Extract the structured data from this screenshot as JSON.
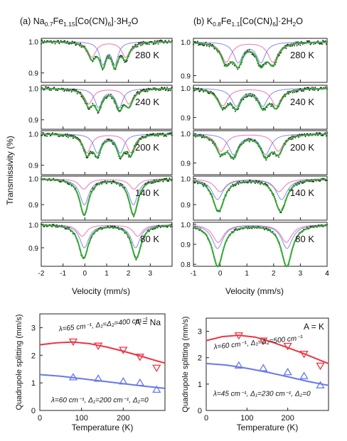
{
  "colors": {
    "fit": "#33aa33",
    "pink": "#ee77aa",
    "blue": "#8888ee",
    "data": "#111111",
    "top_red": "#ee3344",
    "bot_blue": "#6677ee"
  },
  "chart_data": [
    {
      "type": "line",
      "panel": "a",
      "title_prefix": "(a) ",
      "title_pre": "Na",
      "title_sub1": "0.7",
      "title_mid": "Fe",
      "title_sub2": "1.15",
      "title_post": "[Co(CN)",
      "title_sub3": "6",
      "title_end": "]·3H",
      "title_sub4": "2",
      "title_tail": "O",
      "xlabel": "Velocity (mm/s)",
      "ylabel": "Transmissivity (%)",
      "xlim": [
        -2,
        4
      ],
      "xticks": [
        -2,
        -1,
        0,
        1,
        2,
        3
      ],
      "spectra": [
        {
          "label": "280 K",
          "ylim": [
            0.87,
            1.01
          ],
          "yticks": [
            1.0,
            0.9
          ],
          "ytick_labels": [
            "1.0",
            "0.9"
          ],
          "sites": [
            {
              "center": 1.1,
              "split": 1.55,
              "depth": 0.05,
              "width": 0.45,
              "color": "pink"
            },
            {
              "center": 1.1,
              "split": 0.55,
              "depth": 0.07,
              "width": 0.35,
              "color": "blue"
            }
          ]
        },
        {
          "label": "240 K",
          "ylim": [
            0.87,
            1.01
          ],
          "yticks": [
            1.0,
            0.9
          ],
          "ytick_labels": [
            "1.0",
            "0.9"
          ],
          "sites": [
            {
              "center": 1.1,
              "split": 1.85,
              "depth": 0.05,
              "width": 0.45,
              "color": "pink"
            },
            {
              "center": 1.1,
              "split": 0.95,
              "depth": 0.06,
              "width": 0.4,
              "color": "blue"
            }
          ]
        },
        {
          "label": "200 K",
          "ylim": [
            0.87,
            1.01
          ],
          "yticks": [
            1.0,
            0.9
          ],
          "ytick_labels": [
            "1.0",
            "0.9"
          ],
          "sites": [
            {
              "center": 1.1,
              "split": 2.0,
              "depth": 0.06,
              "width": 0.45,
              "color": "pink"
            },
            {
              "center": 1.1,
              "split": 1.05,
              "depth": 0.06,
              "width": 0.42,
              "color": "blue"
            }
          ]
        },
        {
          "label": "140 K",
          "ylim": [
            0.84,
            1.01
          ],
          "yticks": [
            1.0,
            0.9
          ],
          "ytick_labels": [
            "1.0",
            "0.9"
          ],
          "sites": [
            {
              "center": 1.1,
              "split": 2.3,
              "depth": 0.04,
              "width": 0.5,
              "color": "pink"
            },
            {
              "center": 1.1,
              "split": 2.25,
              "depth": 0.1,
              "width": 0.5,
              "color": "blue"
            }
          ]
        },
        {
          "label": "80 K",
          "ylim": [
            0.82,
            1.01
          ],
          "yticks": [
            1.0,
            0.9
          ],
          "ytick_labels": [
            "1.0",
            "0.9"
          ],
          "sites": [
            {
              "center": 1.15,
              "split": 2.55,
              "depth": 0.05,
              "width": 0.5,
              "color": "pink"
            },
            {
              "center": 1.15,
              "split": 2.35,
              "depth": 0.1,
              "width": 0.5,
              "color": "blue"
            }
          ]
        }
      ]
    },
    {
      "type": "line",
      "panel": "b",
      "title_prefix": "(b) ",
      "title_pre": "K",
      "title_sub1": "0.8",
      "title_mid": "Fe",
      "title_sub2": "1.1",
      "title_post": "[Co(CN)",
      "title_sub3": "6",
      "title_end": "]·2H",
      "title_sub4": "2",
      "title_tail": "O",
      "xlabel": "Velocity (mm/s)",
      "xlim": [
        -1,
        4
      ],
      "xticks": [
        -1,
        0,
        1,
        2,
        3,
        4
      ],
      "spectra": [
        {
          "label": "280 K",
          "ylim": [
            0.88,
            1.01
          ],
          "yticks": [
            1.0,
            0.9
          ],
          "ytick_labels": [
            "1.0",
            "0.9"
          ],
          "sites": [
            {
              "center": 1.1,
              "split": 1.75,
              "depth": 0.06,
              "width": 0.45,
              "color": "pink"
            },
            {
              "center": 1.1,
              "split": 0.85,
              "depth": 0.06,
              "width": 0.4,
              "color": "blue"
            }
          ]
        },
        {
          "label": "240 K",
          "ylim": [
            0.86,
            1.01
          ],
          "yticks": [
            1.0,
            0.9
          ],
          "ytick_labels": [
            "1.0",
            "0.9"
          ],
          "sites": [
            {
              "center": 1.1,
              "split": 2.0,
              "depth": 0.06,
              "width": 0.45,
              "color": "pink"
            },
            {
              "center": 1.1,
              "split": 1.0,
              "depth": 0.06,
              "width": 0.42,
              "color": "blue"
            }
          ]
        },
        {
          "label": "200 K",
          "ylim": [
            0.86,
            1.01
          ],
          "yticks": [
            1.0,
            0.9
          ],
          "ytick_labels": [
            "1.0",
            "0.9"
          ],
          "sites": [
            {
              "center": 1.1,
              "split": 2.15,
              "depth": 0.06,
              "width": 0.45,
              "color": "pink"
            },
            {
              "center": 1.1,
              "split": 1.2,
              "depth": 0.07,
              "width": 0.45,
              "color": "blue"
            }
          ]
        },
        {
          "label": "140 K",
          "ylim": [
            0.84,
            1.01
          ],
          "yticks": [
            1.0,
            0.9
          ],
          "ytick_labels": [
            "1.0",
            "0.9"
          ],
          "sites": [
            {
              "center": 1.1,
              "split": 2.2,
              "depth": 0.05,
              "width": 0.5,
              "color": "pink"
            },
            {
              "center": 1.1,
              "split": 2.4,
              "depth": 0.08,
              "width": 0.5,
              "color": "blue"
            }
          ]
        },
        {
          "label": "80 K",
          "ylim": [
            0.79,
            1.01
          ],
          "yticks": [
            1.0,
            0.9,
            0.8
          ],
          "ytick_labels": [
            "1.0",
            "0.9",
            "0.8"
          ],
          "sites": [
            {
              "center": 1.2,
              "split": 2.55,
              "depth": 0.09,
              "width": 0.5,
              "color": "pink"
            },
            {
              "center": 1.2,
              "split": 2.6,
              "depth": 0.12,
              "width": 0.5,
              "color": "blue"
            }
          ]
        }
      ]
    },
    {
      "type": "scatter",
      "panel": "c",
      "label": "A = Na",
      "xlabel": "Temperature (K)",
      "ylabel": "Quadrupole splitting (mm/s)",
      "xlim": [
        0,
        300
      ],
      "ylim": [
        0,
        3.5
      ],
      "xticks": [
        0,
        100,
        200
      ],
      "yticks": [
        0,
        1,
        2,
        3
      ],
      "series": [
        {
          "color": "top_red",
          "marker": "down-triangle",
          "x": [
            80,
            140,
            200,
            240,
            280
          ],
          "y": [
            2.5,
            2.35,
            2.2,
            1.95,
            1.55
          ],
          "fit_x": [
            0,
            40,
            80,
            120,
            160,
            200,
            240,
            280,
            300
          ],
          "fit_y": [
            2.38,
            2.45,
            2.48,
            2.42,
            2.3,
            2.15,
            1.98,
            1.8,
            1.72
          ]
        },
        {
          "color": "bot_blue",
          "marker": "up-triangle",
          "x": [
            80,
            140,
            200,
            240,
            280
          ],
          "y": [
            1.2,
            1.15,
            1.05,
            1.0,
            0.75
          ],
          "fit_x": [
            0,
            50,
            100,
            150,
            200,
            250,
            300
          ],
          "fit_y": [
            1.3,
            1.24,
            1.15,
            1.06,
            0.97,
            0.88,
            0.8
          ]
        }
      ],
      "annot_top": "λ=65 cm⁻¹, Δ₁=Δ₂=400 cm⁻¹",
      "annot_bottom": "λ=60 cm⁻¹, Δ₁=200 cm⁻¹, Δ₂=0"
    },
    {
      "type": "scatter",
      "panel": "d",
      "label": "A = K",
      "xlabel": "Temperature (K)",
      "xlim": [
        0,
        300
      ],
      "ylim": [
        0,
        3.5
      ],
      "xticks": [
        0,
        100,
        200
      ],
      "yticks": [
        0,
        1,
        2,
        3
      ],
      "series": [
        {
          "color": "top_red",
          "marker": "down-triangle",
          "x": [
            80,
            140,
            200,
            240,
            280
          ],
          "y": [
            2.85,
            2.65,
            2.45,
            2.15,
            1.7
          ],
          "fit_x": [
            0,
            40,
            80,
            120,
            160,
            200,
            240,
            280,
            300
          ],
          "fit_y": [
            2.65,
            2.8,
            2.85,
            2.78,
            2.6,
            2.38,
            2.15,
            1.9,
            1.78
          ]
        },
        {
          "color": "bot_blue",
          "marker": "up-triangle",
          "x": [
            80,
            140,
            200,
            240,
            280
          ],
          "y": [
            1.7,
            1.6,
            1.45,
            1.3,
            0.95
          ],
          "fit_x": [
            0,
            50,
            100,
            150,
            200,
            250,
            300
          ],
          "fit_y": [
            1.78,
            1.72,
            1.6,
            1.45,
            1.28,
            1.1,
            0.95
          ]
        }
      ],
      "annot_top": "λ=60 cm⁻¹, Δ₁=Δ₂=500 cm⁻¹",
      "annot_bottom": "λ=45 cm⁻¹, Δ₁=230 cm⁻¹, Δ₂=0"
    }
  ]
}
